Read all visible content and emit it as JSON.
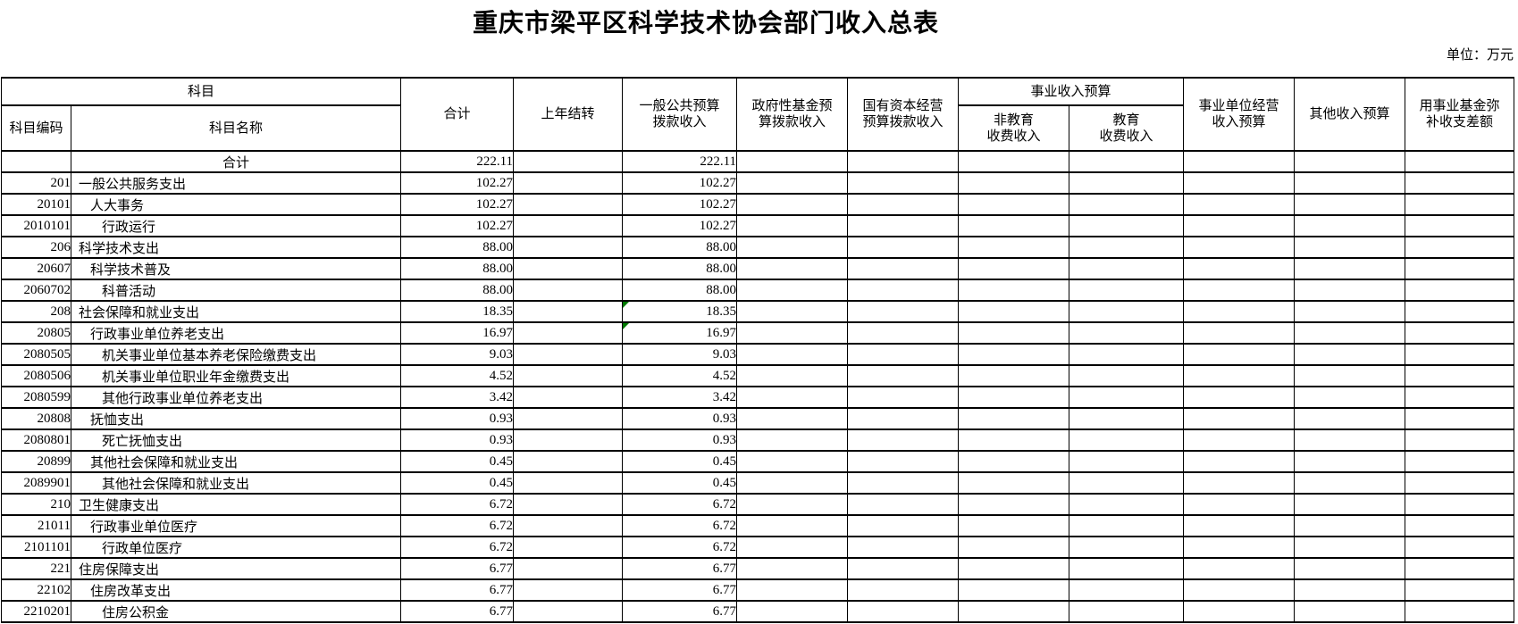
{
  "title": "重庆市梁平区科学技术协会部门收入总表",
  "unit_note": "单位：万元",
  "comment_marker_color": "#007A00",
  "columns": {
    "subject_group": "科目",
    "code": "科目编码",
    "name": "科目名称",
    "total": "合计",
    "carryover": "上年结转",
    "general_public_budget": "一般公共预算\n拨款收入",
    "gov_fund_budget": "政府性基金预\n算拨款收入",
    "state_capital_budget": "国有资本经营\n预算拨款收入",
    "business_income_group": "事业收入预算",
    "non_edu_fee": "非教育\n收费收入",
    "edu_fee": "教育\n收费收入",
    "business_unit_operating": "事业单位经营\n收入预算",
    "other_income": "其他收入预算",
    "fund_cover_balance": "用事业基金弥\n补收支差额"
  },
  "rows": [
    {
      "code": "",
      "name": "合计",
      "level": 0,
      "total": "222.11",
      "general": "222.11",
      "marker": false
    },
    {
      "code": "201",
      "name": "一般公共服务支出",
      "level": 1,
      "total": "102.27",
      "general": "102.27",
      "marker": false
    },
    {
      "code": "20101",
      "name": "人大事务",
      "level": 2,
      "total": "102.27",
      "general": "102.27",
      "marker": false
    },
    {
      "code": "2010101",
      "name": "行政运行",
      "level": 3,
      "total": "102.27",
      "general": "102.27",
      "marker": false
    },
    {
      "code": "206",
      "name": "科学技术支出",
      "level": 1,
      "total": "88.00",
      "general": "88.00",
      "marker": false
    },
    {
      "code": "20607",
      "name": "科学技术普及",
      "level": 2,
      "total": "88.00",
      "general": "88.00",
      "marker": false
    },
    {
      "code": "2060702",
      "name": "科普活动",
      "level": 3,
      "total": "88.00",
      "general": "88.00",
      "marker": false
    },
    {
      "code": "208",
      "name": "社会保障和就业支出",
      "level": 1,
      "total": "18.35",
      "general": "18.35",
      "marker": true
    },
    {
      "code": "20805",
      "name": "行政事业单位养老支出",
      "level": 2,
      "total": "16.97",
      "general": "16.97",
      "marker": true
    },
    {
      "code": "2080505",
      "name": "机关事业单位基本养老保险缴费支出",
      "level": 3,
      "total": "9.03",
      "general": "9.03",
      "marker": false
    },
    {
      "code": "2080506",
      "name": "机关事业单位职业年金缴费支出",
      "level": 3,
      "total": "4.52",
      "general": "4.52",
      "marker": false
    },
    {
      "code": "2080599",
      "name": "其他行政事业单位养老支出",
      "level": 3,
      "total": "3.42",
      "general": "3.42",
      "marker": false
    },
    {
      "code": "20808",
      "name": "抚恤支出",
      "level": 2,
      "total": "0.93",
      "general": "0.93",
      "marker": false
    },
    {
      "code": "2080801",
      "name": "死亡抚恤支出",
      "level": 3,
      "total": "0.93",
      "general": "0.93",
      "marker": false
    },
    {
      "code": "20899",
      "name": "其他社会保障和就业支出",
      "level": 2,
      "total": "0.45",
      "general": "0.45",
      "marker": false
    },
    {
      "code": "2089901",
      "name": "其他社会保障和就业支出",
      "level": 3,
      "total": "0.45",
      "general": "0.45",
      "marker": false
    },
    {
      "code": "210",
      "name": "卫生健康支出",
      "level": 1,
      "total": "6.72",
      "general": "6.72",
      "marker": false
    },
    {
      "code": "21011",
      "name": "行政事业单位医疗",
      "level": 2,
      "total": "6.72",
      "general": "6.72",
      "marker": false
    },
    {
      "code": "2101101",
      "name": "行政单位医疗",
      "level": 3,
      "total": "6.72",
      "general": "6.72",
      "marker": false
    },
    {
      "code": "221",
      "name": "住房保障支出",
      "level": 1,
      "total": "6.77",
      "general": "6.77",
      "marker": false
    },
    {
      "code": "22102",
      "name": "住房改革支出",
      "level": 2,
      "total": "6.77",
      "general": "6.77",
      "marker": false
    },
    {
      "code": "2210201",
      "name": "住房公积金",
      "level": 3,
      "total": "6.77",
      "general": "6.77",
      "marker": false
    }
  ]
}
